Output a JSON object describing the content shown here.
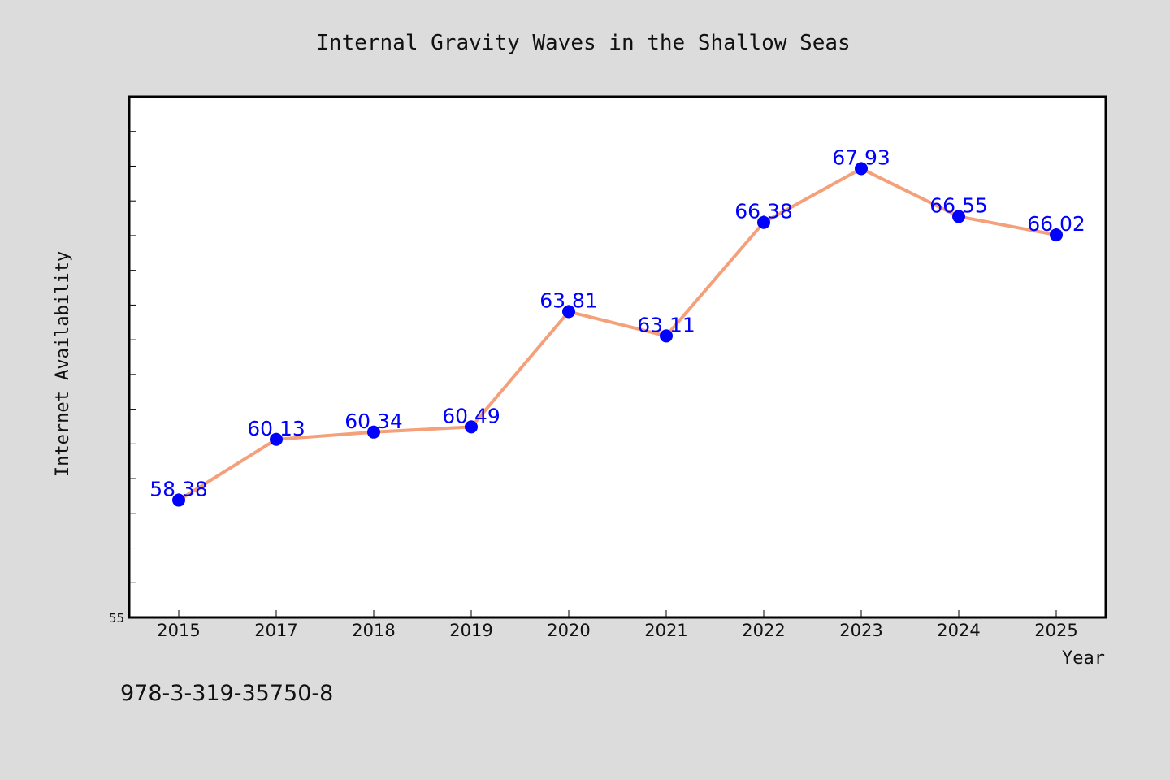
{
  "chart_data": {
    "type": "line",
    "title": "Internal Gravity Waves in the Shallow Seas",
    "xlabel": "Year",
    "ylabel": "Internet Availability",
    "categories": [
      "2015",
      "2017",
      "2018",
      "2019",
      "2020",
      "2021",
      "2022",
      "2023",
      "2024",
      "2025"
    ],
    "series": [
      {
        "values": [
          58.38,
          60.13,
          60.34,
          60.49,
          63.81,
          63.11,
          66.38,
          67.93,
          66.55,
          66.02
        ]
      }
    ],
    "data_labels": [
      "58.38",
      "60.13",
      "60.34",
      "60.49",
      "63.81",
      "63.11",
      "66.38",
      "67.93",
      "66.55",
      "66.02"
    ],
    "ylim": [
      55,
      70
    ],
    "y_tick_labels": [
      "55"
    ],
    "grid": false,
    "colors": {
      "line": "#f4a07a",
      "marker": "#0000ff",
      "data_label": "#0000ff",
      "plot_bg": "#ffffff",
      "page_bg": "#dcdcdc"
    }
  },
  "footer": {
    "isbn": "978-3-319-35750-8"
  }
}
